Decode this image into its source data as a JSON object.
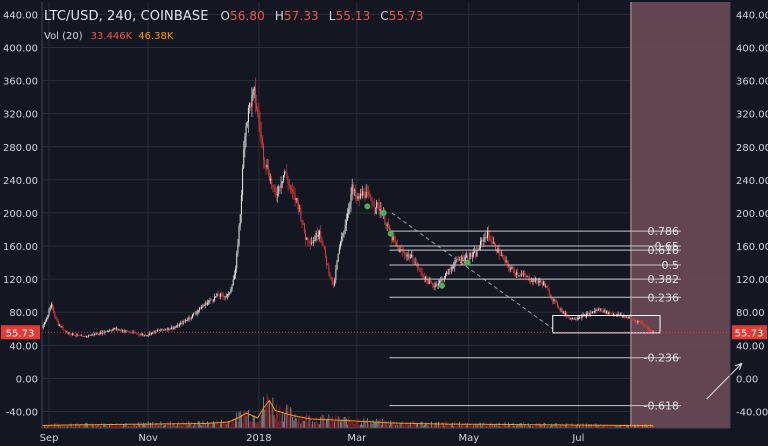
{
  "header": {
    "symbol": "LTC/USD, 240, COINBASE",
    "open_label": "O",
    "open": "56.80",
    "high_label": "H",
    "high": "57.33",
    "low_label": "L",
    "low": "55.13",
    "close_label": "C",
    "close": "55.73"
  },
  "volume": {
    "label": "Vol (20)",
    "value": "33.446K",
    "ma": "46.38K"
  },
  "colors": {
    "background": "#131722",
    "grid": "#2a2e39",
    "up": "#e8e8e8",
    "down": "#e53935",
    "price_line": "#e53935",
    "projection_zone": "#6b4a55",
    "fib": "#c8c8c8",
    "markers": "#4caf50",
    "volume_ma": "#ff9800"
  },
  "chart_data": {
    "type": "candlestick",
    "title": "LTC/USD, 240, COINBASE",
    "y_ticks": [
      440,
      400,
      360,
      320,
      280,
      240,
      200,
      160,
      120,
      80,
      40,
      0,
      -40
    ],
    "y_tick_labels": [
      "440.00",
      "400.00",
      "360.00",
      "320.00",
      "280.00",
      "240.00",
      "200.00",
      "160.00",
      "120.00",
      "80.00",
      "40.00",
      "0.00",
      "-40.00"
    ],
    "ylim": [
      -60,
      455
    ],
    "x_tick_labels": [
      "Sep",
      "Nov",
      "2018",
      "Mar",
      "May",
      "Jul"
    ],
    "x_tick_index": [
      6,
      91,
      186,
      270,
      366,
      460
    ],
    "last_price": 55.73,
    "last_price_label": "55.73",
    "price_path": [
      [
        0,
        60
      ],
      [
        8,
        88
      ],
      [
        14,
        65
      ],
      [
        22,
        55
      ],
      [
        35,
        50
      ],
      [
        50,
        55
      ],
      [
        62,
        60
      ],
      [
        75,
        56
      ],
      [
        88,
        52
      ],
      [
        100,
        58
      ],
      [
        115,
        62
      ],
      [
        128,
        75
      ],
      [
        140,
        90
      ],
      [
        150,
        100
      ],
      [
        160,
        100
      ],
      [
        166,
        130
      ],
      [
        170,
        200
      ],
      [
        174,
        300
      ],
      [
        178,
        330
      ],
      [
        182,
        345
      ],
      [
        186,
        310
      ],
      [
        190,
        270
      ],
      [
        196,
        240
      ],
      [
        200,
        220
      ],
      [
        208,
        250
      ],
      [
        214,
        225
      ],
      [
        220,
        210
      ],
      [
        226,
        170
      ],
      [
        232,
        165
      ],
      [
        238,
        180
      ],
      [
        244,
        140
      ],
      [
        250,
        110
      ],
      [
        254,
        150
      ],
      [
        258,
        175
      ],
      [
        262,
        200
      ],
      [
        266,
        230
      ],
      [
        270,
        215
      ],
      [
        276,
        225
      ],
      [
        282,
        215
      ],
      [
        290,
        205
      ],
      [
        296,
        185
      ],
      [
        300,
        170
      ],
      [
        306,
        155
      ],
      [
        312,
        150
      ],
      [
        318,
        145
      ],
      [
        324,
        130
      ],
      [
        330,
        118
      ],
      [
        336,
        112
      ],
      [
        342,
        118
      ],
      [
        348,
        128
      ],
      [
        354,
        140
      ],
      [
        360,
        145
      ],
      [
        366,
        148
      ],
      [
        372,
        150
      ],
      [
        378,
        168
      ],
      [
        382,
        175
      ],
      [
        388,
        160
      ],
      [
        394,
        148
      ],
      [
        400,
        135
      ],
      [
        406,
        128
      ],
      [
        412,
        125
      ],
      [
        418,
        120
      ],
      [
        424,
        118
      ],
      [
        430,
        115
      ],
      [
        436,
        100
      ],
      [
        442,
        88
      ],
      [
        448,
        78
      ],
      [
        454,
        72
      ],
      [
        460,
        74
      ],
      [
        466,
        76
      ],
      [
        472,
        80
      ],
      [
        478,
        84
      ],
      [
        484,
        80
      ],
      [
        490,
        78
      ],
      [
        496,
        76
      ],
      [
        502,
        74
      ],
      [
        508,
        70
      ],
      [
        514,
        68
      ],
      [
        520,
        60
      ],
      [
        524,
        55.73
      ]
    ],
    "volume_path": [
      [
        0,
        5
      ],
      [
        20,
        6
      ],
      [
        60,
        7
      ],
      [
        100,
        8
      ],
      [
        140,
        9
      ],
      [
        160,
        12
      ],
      [
        170,
        22
      ],
      [
        175,
        30
      ],
      [
        180,
        25
      ],
      [
        185,
        20
      ],
      [
        190,
        40
      ],
      [
        195,
        55
      ],
      [
        200,
        35
      ],
      [
        215,
        25
      ],
      [
        230,
        18
      ],
      [
        260,
        15
      ],
      [
        300,
        10
      ],
      [
        340,
        8
      ],
      [
        400,
        7
      ],
      [
        450,
        6
      ],
      [
        500,
        5
      ],
      [
        524,
        5
      ]
    ],
    "volume_max": 100,
    "fibonacci": {
      "levels": [
        {
          "ratio": 0.786,
          "label": "0.786",
          "price": 178
        },
        {
          "ratio": 0.65,
          "label": "0.65",
          "price": 160
        },
        {
          "ratio": 0.618,
          "label": "0.618",
          "price": 155
        },
        {
          "ratio": 0.5,
          "label": "0.5",
          "price": 137
        },
        {
          "ratio": 0.382,
          "label": "0.382",
          "price": 120
        },
        {
          "ratio": 0.236,
          "label": "0.236",
          "price": 98
        },
        {
          "ratio": -0.236,
          "label": "-0.236",
          "price": 25
        },
        {
          "ratio": -0.618,
          "label": "-0.618",
          "price": -33
        }
      ],
      "start_index": 298,
      "end_index": 548
    },
    "markers": [
      {
        "index": 279,
        "price": 208
      },
      {
        "index": 293,
        "price": 200
      },
      {
        "index": 299,
        "price": 175
      },
      {
        "index": 343,
        "price": 112
      },
      {
        "index": 365,
        "price": 140
      }
    ],
    "trendline": {
      "from": [
        300,
        200
      ],
      "to": [
        438,
        60
      ]
    },
    "box": {
      "from_index": 438,
      "to_index": 530,
      "low": 55,
      "high": 76
    },
    "projection_arrow": {
      "from": [
        570,
        -25
      ],
      "to": [
        600,
        18
      ]
    },
    "projection_zone_start_index": 505,
    "total_index": 590
  }
}
